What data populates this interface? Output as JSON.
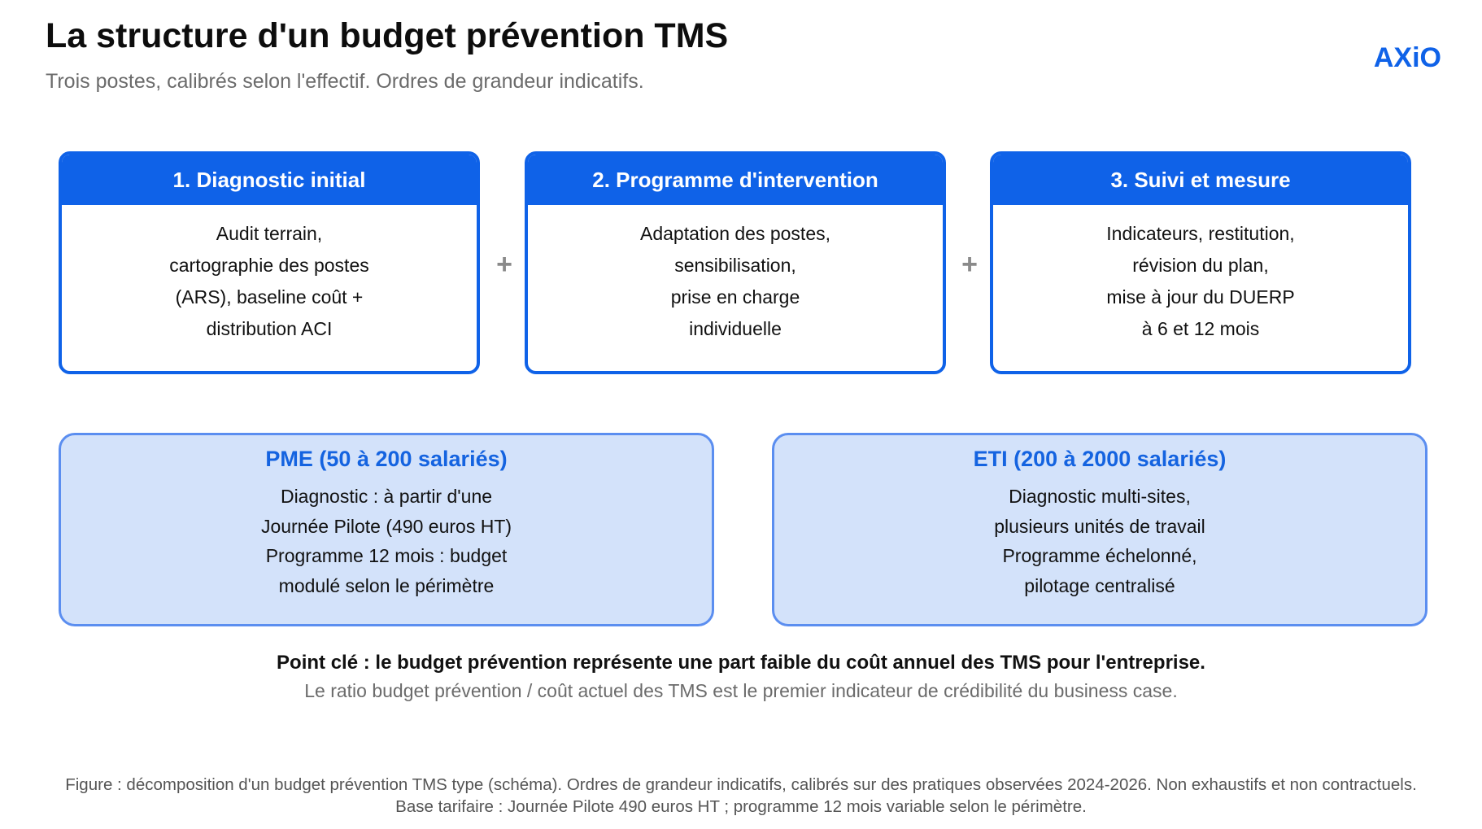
{
  "header": {
    "title": "La structure d'un budget prévention TMS",
    "subtitle": "Trois postes, calibrés selon l'effectif. Ordres de grandeur indicatifs.",
    "logo": "AXiO"
  },
  "steps": [
    {
      "title": "1. Diagnostic initial",
      "lines": [
        "Audit terrain,",
        "cartographie des postes",
        "(ARS), baseline coût +",
        "distribution ACI"
      ]
    },
    {
      "title": "2. Programme d'intervention",
      "lines": [
        "Adaptation des postes,",
        "sensibilisation,",
        "prise en charge",
        "individuelle"
      ]
    },
    {
      "title": "3. Suivi et mesure",
      "lines": [
        "Indicateurs, restitution,",
        "révision du plan,",
        "mise à jour du DUERP",
        "à 6 et 12 mois"
      ]
    }
  ],
  "connector": "+",
  "tiers": [
    {
      "title": "PME (50 à 200 salariés)",
      "lines": [
        "Diagnostic : à partir d'une",
        "Journée Pilote (490 euros HT)",
        "Programme 12 mois : budget",
        "modulé selon le périmètre"
      ]
    },
    {
      "title": "ETI (200 à 2000 salariés)",
      "lines": [
        "Diagnostic multi-sites,",
        "plusieurs unités de travail",
        "Programme échelonné,",
        "pilotage centralisé"
      ]
    }
  ],
  "key_point": {
    "headline": "Point clé : le budget prévention représente une part faible du coût annuel des TMS pour l'entreprise.",
    "detail": "Le ratio budget prévention / coût actuel des TMS est le premier indicateur de crédibilité du business case."
  },
  "caption": {
    "line1": "Figure : décomposition d'un budget prévention TMS type (schéma). Ordres de grandeur indicatifs, calibrés sur des pratiques observées 2024-2026. Non exhaustifs et non contractuels.",
    "line2": "Base tarifaire : Journée Pilote 490 euros HT ; programme 12 mois variable selon le périmètre."
  },
  "colors": {
    "accent": "#0f62e8",
    "tier_fill": "#d3e2fa",
    "tier_border": "#5b8ef0",
    "muted_text": "#6b6b6b"
  }
}
